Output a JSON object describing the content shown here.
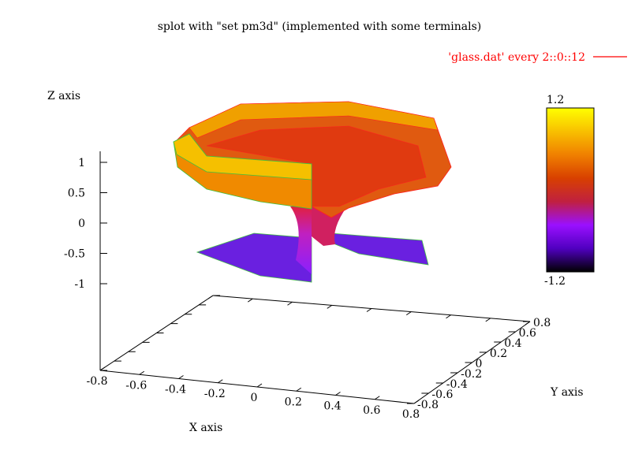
{
  "chart_data": {
    "type": "surface-3d",
    "title": "splot with \"set pm3d\" (implemented with some terminals)",
    "legend": {
      "label": "'glass.dat' every 2::0::12",
      "color": "#ff0000",
      "placement": "top-right"
    },
    "xlabel": "X axis",
    "ylabel": "Y axis",
    "zlabel": "Z axis",
    "x_ticks": [
      "-0.8",
      "-0.6",
      "-0.4",
      "-0.2",
      "0",
      "0.2",
      "0.4",
      "0.6",
      "0.8"
    ],
    "y_ticks": [
      "-0.8",
      "-0.6",
      "-0.4",
      "-0.2",
      "0",
      "0.2",
      "0.4",
      "0.6",
      "0.8"
    ],
    "z_ticks": [
      "1",
      "0.5",
      "0",
      "-0.5",
      "-1"
    ],
    "xlim": [
      -0.8,
      0.8
    ],
    "ylim": [
      -0.8,
      0.8
    ],
    "zlim": [
      -1,
      1
    ],
    "colorbar": {
      "min_label": "-1.2",
      "max_label": "1.2",
      "range": [
        -1.2,
        1.2
      ],
      "palette": [
        "#000000",
        "#5000c0",
        "#9a10ff",
        "#c02040",
        "#d84000",
        "#f08000",
        "#f8c000",
        "#ffff00"
      ]
    },
    "surface_colors": {
      "rim": "#f5c000",
      "bowl": "#e87010",
      "inner": "#e03010",
      "stem": "#b020e0",
      "base": "#6a20e0",
      "mesh_top": "#ff2020",
      "mesh_bottom": "#40c040"
    }
  }
}
